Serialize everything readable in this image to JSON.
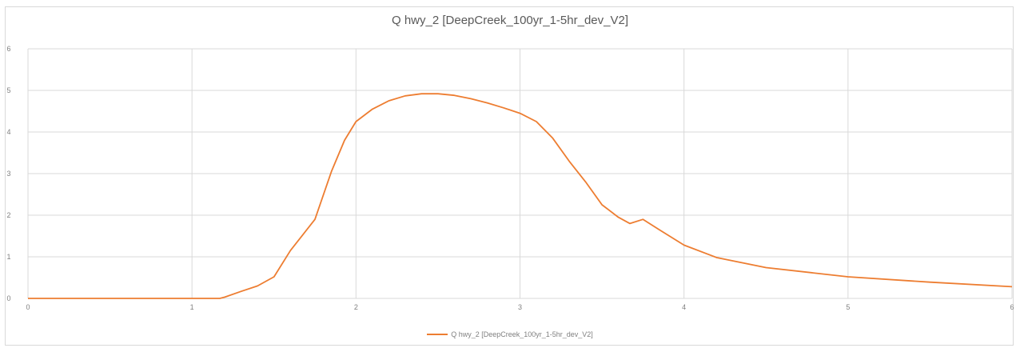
{
  "chart_data": {
    "type": "line",
    "title": "Q hwy_2 [DeepCreek_100yr_1-5hr_dev_V2]",
    "xlabel": "",
    "ylabel": "",
    "xlim": [
      0,
      6
    ],
    "ylim": [
      0,
      6
    ],
    "x_ticks": [
      "0",
      "1",
      "2",
      "3",
      "4",
      "5",
      "6"
    ],
    "y_ticks": [
      "0",
      "1",
      "2",
      "3",
      "4",
      "5",
      "6"
    ],
    "grid": true,
    "legend_position": "bottom",
    "series": [
      {
        "name": "Q hwy_2 [DeepCreek_100yr_1-5hr_dev_V2]",
        "color": "#ed7d31",
        "x": [
          0,
          1.0,
          1.17,
          1.2,
          1.3,
          1.4,
          1.5,
          1.6,
          1.75,
          1.85,
          1.93,
          2.0,
          2.1,
          2.2,
          2.3,
          2.4,
          2.5,
          2.6,
          2.7,
          2.8,
          2.9,
          3.0,
          3.1,
          3.2,
          3.3,
          3.4,
          3.5,
          3.6,
          3.67,
          3.75,
          3.85,
          4.0,
          4.2,
          4.5,
          5.0,
          5.5,
          6.0
        ],
        "y": [
          0,
          0,
          0,
          0.03,
          0.17,
          0.3,
          0.52,
          1.15,
          1.9,
          3.05,
          3.8,
          4.25,
          4.55,
          4.75,
          4.87,
          4.92,
          4.92,
          4.88,
          4.8,
          4.7,
          4.58,
          4.45,
          4.25,
          3.85,
          3.3,
          2.8,
          2.25,
          1.95,
          1.8,
          1.9,
          1.65,
          1.28,
          0.98,
          0.74,
          0.52,
          0.39,
          0.28
        ]
      }
    ]
  }
}
